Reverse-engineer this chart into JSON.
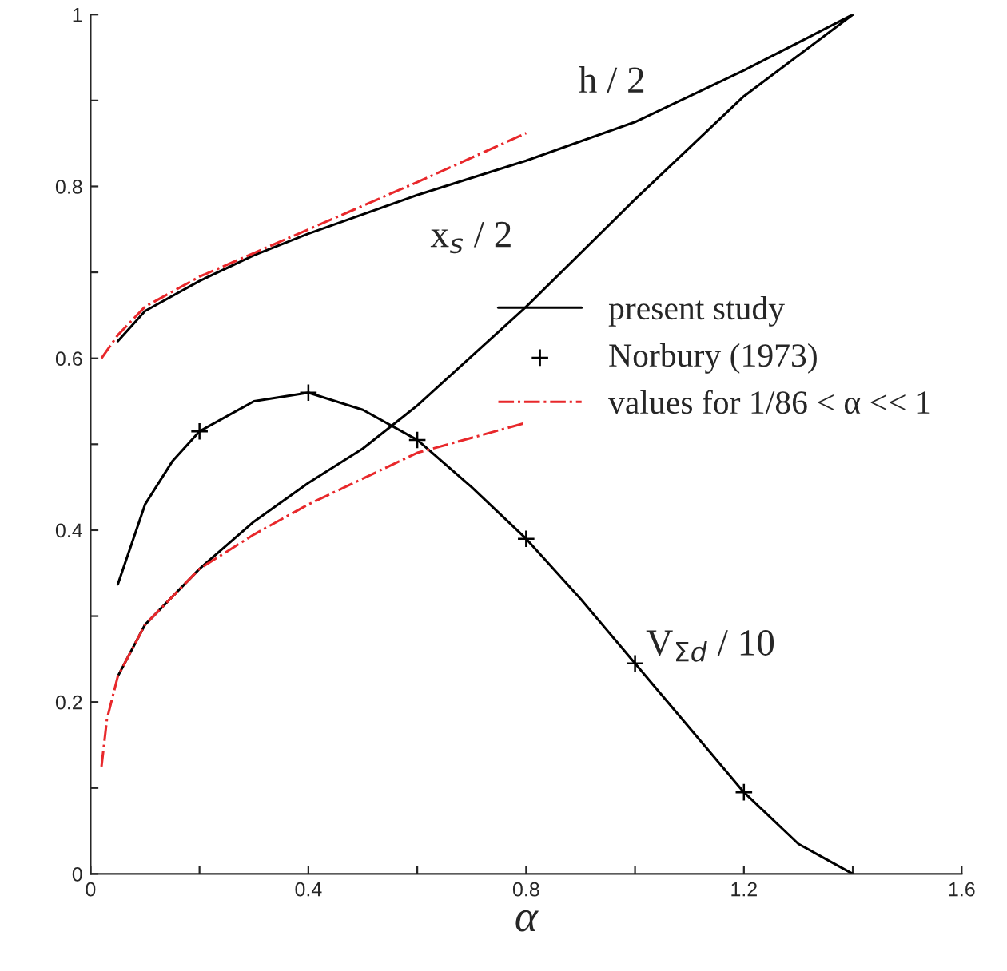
{
  "chart_data": {
    "type": "line",
    "xlabel": "α",
    "xlim": [
      0,
      1.6
    ],
    "ylim": [
      0,
      1
    ],
    "xticks": [
      0,
      {
        "value": 0.2,
        "label": null
      },
      0.4,
      {
        "value": 0.6,
        "label": null
      },
      0.8,
      {
        "value": 1.0,
        "label": null
      },
      1.2,
      {
        "value": 1.4,
        "label": null
      },
      1.6
    ],
    "yticks": [
      0,
      {
        "value": 0.1,
        "label": null
      },
      0.2,
      {
        "value": 0.3,
        "label": null
      },
      0.4,
      {
        "value": 0.5,
        "label": null
      },
      0.6,
      {
        "value": 0.7,
        "label": null
      },
      0.8,
      {
        "value": 0.9,
        "label": null
      },
      1
    ],
    "grid": false,
    "legend": "right",
    "series": [
      {
        "name": "present study",
        "color": "#000000",
        "line_style": "solid",
        "x": [
          0.05,
          0.1,
          0.2,
          0.3,
          0.4,
          0.6,
          0.8,
          1.0,
          1.2,
          1.4
        ],
        "values": [
          0.62,
          0.655,
          0.69,
          0.72,
          0.745,
          0.79,
          0.83,
          0.875,
          0.935,
          1.0
        ]
      },
      {
        "color": "#000000",
        "line_style": "solid",
        "x": [
          0.05,
          0.1,
          0.2,
          0.3,
          0.4,
          0.5,
          0.6,
          0.8,
          1.0,
          1.2,
          1.4
        ],
        "values": [
          0.23,
          0.29,
          0.355,
          0.41,
          0.455,
          0.495,
          0.545,
          0.66,
          0.785,
          0.905,
          1.0
        ]
      },
      {
        "color": "#000000",
        "line_style": "solid",
        "x": [
          0.05,
          0.1,
          0.15,
          0.2,
          0.3,
          0.4,
          0.5,
          0.6,
          0.7,
          0.8,
          0.9,
          1.0,
          1.1,
          1.2,
          1.3,
          1.4
        ],
        "values": [
          0.337,
          0.43,
          0.48,
          0.515,
          0.55,
          0.56,
          0.54,
          0.505,
          0.45,
          0.39,
          0.32,
          0.245,
          0.17,
          0.095,
          0.035,
          0.0
        ]
      },
      {
        "name": "Norbury (1973)",
        "type": "scatter",
        "color": "#000000",
        "marker": "cross",
        "x": [
          0.2,
          0.4,
          0.6,
          0.8,
          1.0,
          1.2
        ],
        "values": [
          0.515,
          0.56,
          0.505,
          0.39,
          0.245,
          0.095
        ]
      },
      {
        "name": "values for 1/86 < α << 1",
        "color": "#e8282b",
        "line_style": "dashdot",
        "x": [
          0.02,
          0.05,
          0.1,
          0.2,
          0.4,
          0.6,
          0.8
        ],
        "values": [
          0.6,
          0.627,
          0.66,
          0.695,
          0.75,
          0.805,
          0.862
        ]
      },
      {
        "color": "#e8282b",
        "line_style": "dashdot",
        "x": [
          0.02,
          0.03,
          0.05,
          0.1,
          0.2,
          0.3,
          0.4,
          0.5,
          0.6,
          0.8
        ],
        "values": [
          0.125,
          0.18,
          0.23,
          0.29,
          0.355,
          0.395,
          0.43,
          0.46,
          0.49,
          0.525
        ]
      }
    ],
    "annotations": [
      "h / 2",
      "x$_{s}$ / 2",
      {
        "text": "V$_{Σd}$ / 10",
        "x": 1.02,
        "y": 0.245
      }
    ]
  }
}
